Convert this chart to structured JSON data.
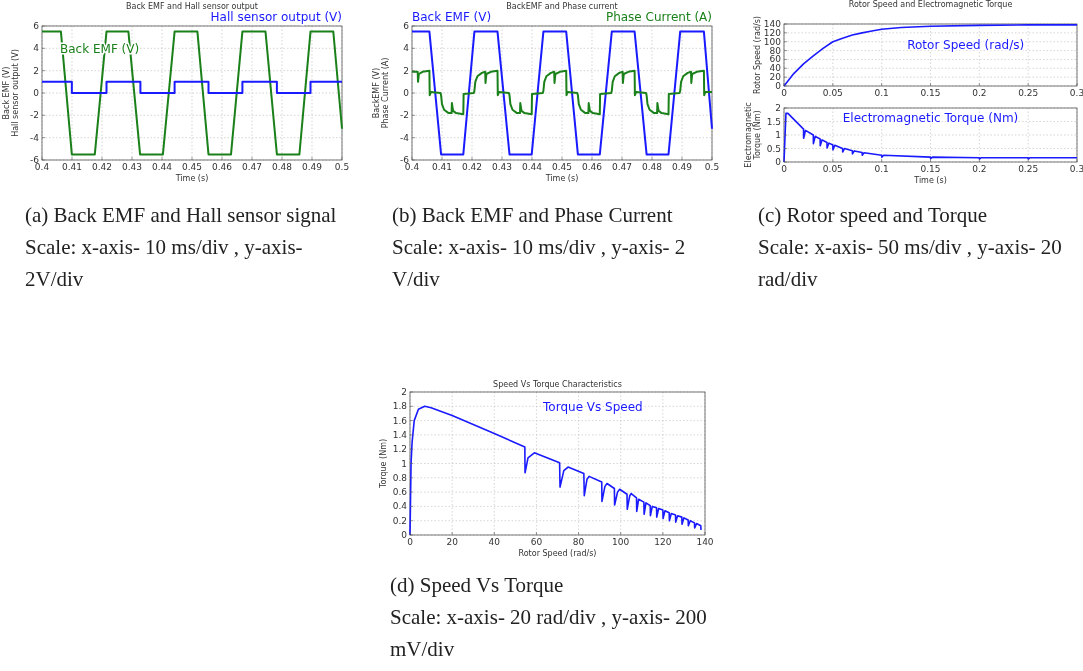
{
  "chart_data": [
    {
      "type": "line",
      "title": "Back EMF and Hall sensor output",
      "xlabel": "Time (s)",
      "ylabel": "Back EMF (V)\nHall sensor output (V)",
      "xlim": [
        0.4,
        0.5
      ],
      "xticks": [
        0.4,
        0.41,
        0.42,
        0.43,
        0.44,
        0.45,
        0.46,
        0.47,
        0.48,
        0.49,
        0.5
      ],
      "ylim": [
        -6,
        6
      ],
      "yticks": [
        -6,
        -4,
        -2,
        0,
        2,
        4,
        6
      ],
      "grid": true,
      "line_style": "solid",
      "series": [
        {
          "name": "Back EMF (V)",
          "color": "#1a801a",
          "x": [
            0.4,
            0.4063,
            0.40995,
            0.4176,
            0.4215,
            0.4288,
            0.4327,
            0.4403,
            0.4442,
            0.4518,
            0.4555,
            0.463,
            0.4668,
            0.4745,
            0.4783,
            0.4858,
            0.4895,
            0.4971,
            0.5
          ],
          "values": [
            5.5,
            5.5,
            -5.5,
            -5.5,
            5.5,
            5.5,
            -5.5,
            -5.5,
            5.5,
            5.5,
            -5.5,
            -5.5,
            5.5,
            5.5,
            -5.5,
            -5.5,
            5.5,
            5.5,
            -3.2
          ]
        },
        {
          "name": "Hall sensor output (V)",
          "color": "#1a1aff",
          "x": [
            0.4,
            0.40995,
            0.40995,
            0.4215,
            0.4215,
            0.4328,
            0.4328,
            0.4442,
            0.4442,
            0.4555,
            0.4555,
            0.4668,
            0.4668,
            0.4783,
            0.4783,
            0.4895,
            0.4895,
            0.5
          ],
          "values": [
            1,
            1,
            0,
            0,
            1,
            1,
            0,
            0,
            1,
            1,
            0,
            0,
            1,
            1,
            0,
            0,
            1,
            1
          ]
        }
      ],
      "annotations": [
        "(a) Back EMF and Hall sensor signal",
        "Scale: x-axis- 10 ms/div , y-axis- 2V/div"
      ]
    },
    {
      "type": "line",
      "title": "BackEMF and Phase current",
      "xlabel": "Time (s)",
      "ylabel": "BackEMF (V)\nPhase Current (A)",
      "xlim": [
        0.4,
        0.5
      ],
      "xticks": [
        0.4,
        0.41,
        0.42,
        0.43,
        0.44,
        0.45,
        0.46,
        0.47,
        0.48,
        0.49,
        0.5
      ],
      "ylim": [
        -6,
        6
      ],
      "yticks": [
        -6,
        -4,
        -2,
        0,
        2,
        4,
        6
      ],
      "grid": true,
      "line_style": "solid",
      "series": [
        {
          "name": "Back EMF (V)",
          "color": "#1a1aff",
          "x": [
            0.4,
            0.4058,
            0.4097,
            0.4171,
            0.4208,
            0.4285,
            0.4325,
            0.4399,
            0.4438,
            0.4514,
            0.4553,
            0.4626,
            0.4666,
            0.4742,
            0.4782,
            0.4855,
            0.4894,
            0.4973,
            0.5
          ],
          "values": [
            5.5,
            5.5,
            -5.5,
            -5.5,
            5.5,
            5.5,
            -5.5,
            -5.5,
            5.5,
            5.5,
            -5.5,
            -5.5,
            5.5,
            5.5,
            -5.5,
            -5.5,
            5.5,
            5.5,
            -3.2
          ]
        },
        {
          "name": "Phase Current (A)",
          "color": "#1a801a",
          "x": [
            0.4,
            0.4019,
            0.402,
            0.4023,
            0.4035,
            0.4058,
            0.4059,
            0.4063,
            0.4095,
            0.4097,
            0.41,
            0.4107,
            0.4122,
            0.4132,
            0.4133,
            0.4137,
            0.4147,
            0.4171,
            0.4172,
            0.4206,
            0.4208,
            0.4211,
            0.4218,
            0.4233,
            0.4244,
            0.4245,
            0.4248,
            0.4263,
            0.4285,
            0.4286,
            0.429,
            0.4323,
            0.4325,
            0.4328,
            0.4335,
            0.435,
            0.436,
            0.4361,
            0.4365,
            0.4375,
            0.4399,
            0.44,
            0.4436,
            0.4438,
            0.4441,
            0.4448,
            0.4463,
            0.4474,
            0.4475,
            0.4478,
            0.4493,
            0.4514,
            0.4515,
            0.4519,
            0.4551,
            0.4553,
            0.4556,
            0.4563,
            0.4578,
            0.4588,
            0.4589,
            0.4593,
            0.4603,
            0.4626,
            0.4627,
            0.4664,
            0.4666,
            0.4669,
            0.4676,
            0.4691,
            0.4702,
            0.4703,
            0.4706,
            0.4721,
            0.4742,
            0.4743,
            0.4747,
            0.478,
            0.4782,
            0.4785,
            0.4792,
            0.4807,
            0.4817,
            0.4818,
            0.4822,
            0.4832,
            0.4855,
            0.4856,
            0.4892,
            0.4894,
            0.4897,
            0.4904,
            0.4919,
            0.493,
            0.4931,
            0.4934,
            0.4949,
            0.4973,
            0.4974,
            0.4978,
            0.5
          ],
          "values": [
            1.9,
            1.9,
            1.0,
            1.7,
            1.9,
            2.0,
            -0.2,
            0.1,
            0.0,
            -0.2,
            -1.0,
            -1.5,
            -1.8,
            -1.8,
            -0.9,
            -1.6,
            -1.8,
            -1.9,
            -0.1,
            0.0,
            0.2,
            1.0,
            1.5,
            1.8,
            1.9,
            0.9,
            1.7,
            1.9,
            2.0,
            -0.2,
            0.1,
            0.0,
            -0.2,
            -1.0,
            -1.5,
            -1.8,
            -1.8,
            -0.9,
            -1.6,
            -1.8,
            -1.9,
            -0.1,
            0.0,
            0.2,
            1.0,
            1.5,
            1.8,
            1.9,
            0.9,
            1.7,
            1.9,
            2.0,
            -0.2,
            0.1,
            0.0,
            -0.2,
            -1.0,
            -1.5,
            -1.8,
            -1.8,
            -0.9,
            -1.6,
            -1.8,
            -1.9,
            -0.1,
            0.0,
            0.2,
            1.0,
            1.5,
            1.8,
            1.9,
            0.9,
            1.7,
            1.9,
            2.0,
            -0.2,
            0.1,
            0.0,
            -0.2,
            -1.0,
            -1.5,
            -1.8,
            -1.8,
            -0.9,
            -1.6,
            -1.8,
            -1.9,
            -0.1,
            0.0,
            0.2,
            1.0,
            1.5,
            1.8,
            1.9,
            0.9,
            1.7,
            1.9,
            2.0,
            -0.2,
            0.1,
            0.1
          ]
        }
      ],
      "annotations": [
        "(b) Back EMF and Phase Current",
        "Scale: x-axis- 10 ms/div , y-axis- 2 V/div"
      ]
    },
    {
      "type": "line",
      "title": "Rotor Speed and Electromagnetic Torque",
      "ylabel": "Rotor Speed (rad/s)",
      "xlim": [
        0,
        0.3
      ],
      "xticks": [
        0,
        0.05,
        0.1,
        0.15,
        0.2,
        0.25,
        0.3
      ],
      "ylim": [
        0,
        140
      ],
      "yticks": [
        0,
        20,
        40,
        60,
        80,
        100,
        120,
        140
      ],
      "grid": true,
      "line_style": "solid",
      "series": [
        {
          "name": "Rotor Speed (rad/s)",
          "color": "#1a1aff",
          "x": [
            0,
            0.005,
            0.01,
            0.02,
            0.03,
            0.04,
            0.05,
            0.06,
            0.07,
            0.08,
            0.09,
            0.1,
            0.12,
            0.15,
            0.2,
            0.25,
            0.3
          ],
          "values": [
            0,
            14,
            28,
            50,
            68,
            85,
            100,
            108,
            115,
            120,
            124,
            128,
            132,
            135,
            137,
            138,
            138
          ]
        }
      ]
    },
    {
      "type": "line",
      "xlabel": "Time (s)",
      "ylabel": "Electromagnetic Torque (Nm)",
      "xlim": [
        0,
        0.3
      ],
      "xticks": [
        0,
        0.05,
        0.1,
        0.15,
        0.2,
        0.25,
        0.3
      ],
      "ylim": [
        0,
        2
      ],
      "yticks": [
        0,
        0.5,
        1,
        1.5,
        2
      ],
      "grid": true,
      "line_style": "solid",
      "series": [
        {
          "name": "Electromagnetic Torque (Nm)",
          "color": "#1a1aff",
          "x": [
            0,
            0.002,
            0.004,
            0.02,
            0.0201,
            0.022,
            0.03,
            0.0301,
            0.032,
            0.037,
            0.0371,
            0.039,
            0.044,
            0.0441,
            0.046,
            0.05,
            0.0501,
            0.052,
            0.06,
            0.0601,
            0.062,
            0.07,
            0.0701,
            0.072,
            0.08,
            0.0801,
            0.082,
            0.1,
            0.1001,
            0.102,
            0.15,
            0.1501,
            0.152,
            0.2,
            0.2001,
            0.202,
            0.25,
            0.2501,
            0.252,
            0.3
          ],
          "values": [
            0,
            1.8,
            1.8,
            1.22,
            0.88,
            1.17,
            1.0,
            0.68,
            0.95,
            0.85,
            0.6,
            0.82,
            0.72,
            0.52,
            0.7,
            0.63,
            0.45,
            0.62,
            0.5,
            0.37,
            0.5,
            0.42,
            0.3,
            0.41,
            0.35,
            0.25,
            0.34,
            0.25,
            0.18,
            0.25,
            0.18,
            0.12,
            0.18,
            0.16,
            0.11,
            0.16,
            0.16,
            0.11,
            0.16,
            0.16
          ]
        }
      ],
      "annotations": [
        "(c) Rotor speed and Torque",
        "Scale: x-axis- 50 ms/div , y-axis- 20 rad/div"
      ]
    },
    {
      "type": "line",
      "title": "Speed Vs Torque Characteristics",
      "xlabel": "Rotor Speed (rad/s)",
      "ylabel": "Torque (Nm)",
      "xlim": [
        0,
        140
      ],
      "xticks": [
        0,
        20,
        40,
        60,
        80,
        100,
        120,
        140
      ],
      "ylim": [
        0,
        2
      ],
      "yticks": [
        0,
        0.2,
        0.4,
        0.6,
        0.8,
        1,
        1.2,
        1.4,
        1.6,
        1.8,
        2
      ],
      "grid": true,
      "line_style": "solid",
      "series": [
        {
          "name": "Torque Vs Speed",
          "color": "#1a1aff",
          "x": [
            0,
            0.5,
            1,
            2,
            4,
            7,
            10,
            20,
            40,
            54.5,
            54.6,
            56,
            59,
            71,
            71.2,
            73,
            75,
            82.5,
            82.7,
            84,
            85,
            91,
            91.1,
            92.5,
            93.5,
            97,
            97.1,
            98.5,
            99.5,
            103,
            103.1,
            104.3,
            105,
            107.5,
            107.6,
            108.5,
            111,
            111.1,
            112,
            114,
            114.1,
            115,
            117,
            117.1,
            118,
            120,
            120.1,
            121,
            123,
            123.1,
            124,
            126,
            126.1,
            127,
            129,
            129.1,
            130,
            132,
            132.1,
            133,
            135,
            135.1,
            136,
            138,
            138.1
          ],
          "values": [
            0,
            1.0,
            1.3,
            1.6,
            1.76,
            1.8,
            1.78,
            1.67,
            1.42,
            1.23,
            0.87,
            1.08,
            1.15,
            1.01,
            0.67,
            0.9,
            0.95,
            0.86,
            0.55,
            0.78,
            0.82,
            0.74,
            0.47,
            0.68,
            0.72,
            0.65,
            0.42,
            0.6,
            0.64,
            0.57,
            0.36,
            0.55,
            0.58,
            0.52,
            0.33,
            0.5,
            0.46,
            0.29,
            0.45,
            0.41,
            0.27,
            0.4,
            0.38,
            0.25,
            0.37,
            0.35,
            0.23,
            0.34,
            0.31,
            0.2,
            0.3,
            0.28,
            0.18,
            0.27,
            0.25,
            0.15,
            0.24,
            0.21,
            0.13,
            0.2,
            0.17,
            0.1,
            0.16,
            0.13,
            0.07
          ]
        }
      ],
      "annotations": [
        "(d) Speed Vs Torque",
        "Scale: x-axis- 20 rad/div , y-axis- 200 mV/div"
      ]
    }
  ]
}
